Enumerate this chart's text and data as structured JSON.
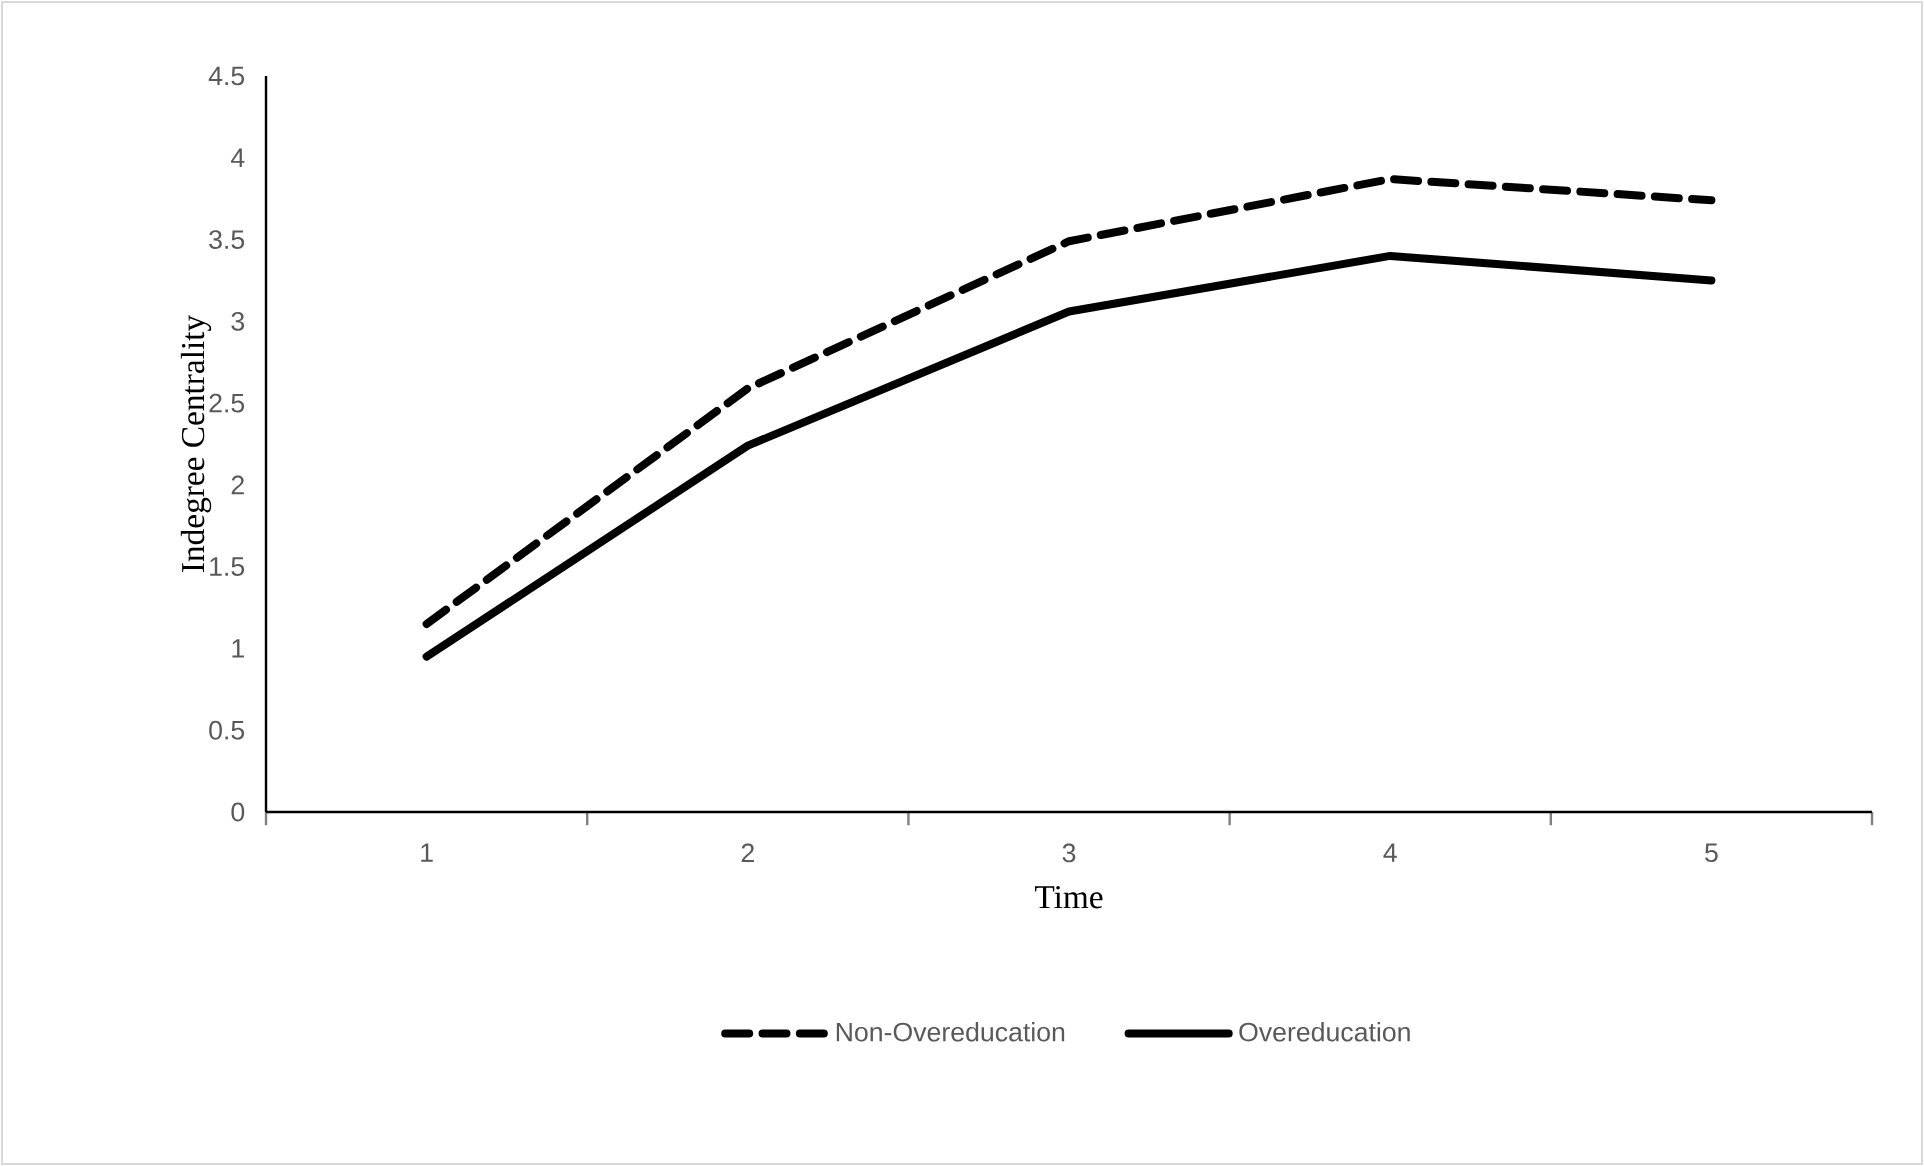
{
  "chart_data": {
    "type": "line",
    "xlabel": "Time",
    "ylabel": "Indegree Centrality",
    "categories": [
      "1",
      "2",
      "3",
      "4",
      "5"
    ],
    "series": [
      {
        "name": "Non-Overeducation",
        "color": "#000000",
        "line_style": "dashed",
        "values": [
          1.15,
          2.59,
          3.49,
          3.87,
          3.74
        ]
      },
      {
        "name": "Overeducation",
        "color": "#000000",
        "line_style": "solid",
        "values": [
          0.95,
          2.24,
          3.06,
          3.4,
          3.25
        ]
      }
    ],
    "ylim": [
      0,
      4.5
    ],
    "yticks": [
      0,
      0.5,
      1,
      1.5,
      2,
      2.5,
      3,
      3.5,
      4,
      4.5
    ],
    "grid": false,
    "legend": "bottom",
    "marker": "none"
  }
}
